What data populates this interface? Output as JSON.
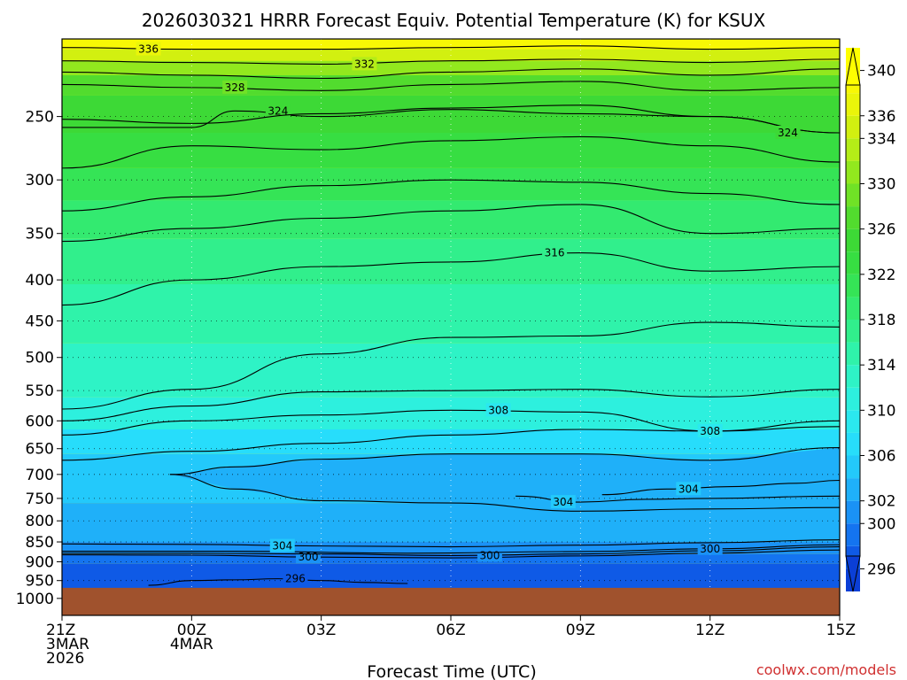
{
  "chart_data": {
    "type": "heatmap",
    "title": "2026030321 HRRR Forecast Equiv. Potential Temperature (K) for KSUX",
    "xlabel": "Forecast Time (UTC)",
    "ylabel": "",
    "credit": "coolwx.com/models",
    "x_ticks": [
      {
        "hour": 0,
        "lines": [
          "21Z",
          "3MAR",
          "2026"
        ]
      },
      {
        "hour": 3,
        "lines": [
          "00Z",
          "4MAR"
        ]
      },
      {
        "hour": 6,
        "lines": [
          "03Z"
        ]
      },
      {
        "hour": 9,
        "lines": [
          "06Z"
        ]
      },
      {
        "hour": 12,
        "lines": [
          "09Z"
        ]
      },
      {
        "hour": 15,
        "lines": [
          "12Z"
        ]
      },
      {
        "hour": 18,
        "lines": [
          "15Z"
        ]
      }
    ],
    "xlim": [
      0,
      18
    ],
    "y_ticks": [
      "250",
      "300",
      "350",
      "400",
      "450",
      "500",
      "550",
      "600",
      "650",
      "700",
      "750",
      "800",
      "850",
      "900",
      "950",
      "1000"
    ],
    "ylim": [
      1050,
      200
    ],
    "y_scale": "log",
    "surface_pressure": 970,
    "grid": true,
    "colorbar": {
      "levels": [
        294,
        296,
        298,
        300,
        302,
        304,
        306,
        308,
        310,
        312,
        314,
        316,
        318,
        320,
        322,
        324,
        326,
        328,
        330,
        332,
        334,
        336,
        338,
        340,
        342
      ],
      "labels": [
        "296",
        "300",
        "302",
        "306",
        "310",
        "314",
        "318",
        "322",
        "326",
        "330",
        "334",
        "336",
        "340"
      ],
      "label_values": [
        296,
        300,
        302,
        306,
        310,
        314,
        318,
        322,
        326,
        330,
        334,
        336,
        340
      ],
      "colors": [
        "#0b3fd6",
        "#0f5ae6",
        "#1474f0",
        "#1a92f6",
        "#1fb0f9",
        "#23c9fb",
        "#27ddfb",
        "#2be8ef",
        "#2df0de",
        "#2ef3c6",
        "#2ff3aa",
        "#31ef8c",
        "#33ea70",
        "#35e456",
        "#37de42",
        "#3dd936",
        "#52dc2e",
        "#70e226",
        "#92e81e",
        "#b4ed17",
        "#d2f010",
        "#eaf50a",
        "#f8f805",
        "#ffff00"
      ],
      "ground_color": "#a0522d"
    },
    "contours": [
      {
        "value": 296,
        "label": "296",
        "label_hour": 5.4,
        "points": [
          [
            2.0,
            963
          ],
          [
            3.0,
            950
          ],
          [
            4.0,
            948
          ],
          [
            5.0,
            945
          ],
          [
            6.0,
            950
          ],
          [
            7.0,
            955
          ],
          [
            8.0,
            958
          ]
        ]
      },
      {
        "value": 300,
        "label": "300",
        "label_hour": 5.7,
        "points": [
          [
            0,
            882
          ],
          [
            3.0,
            883
          ],
          [
            6.0,
            888
          ],
          [
            9.0,
            890
          ],
          [
            12.0,
            885
          ],
          [
            15.0,
            878
          ],
          [
            18.0,
            870
          ]
        ]
      },
      {
        "value": 300,
        "label": "300",
        "label_hour": 9.9,
        "points": [
          [
            0,
            878
          ],
          [
            3.0,
            878
          ],
          [
            6.0,
            880
          ],
          [
            9.0,
            884
          ],
          [
            12.0,
            880
          ],
          [
            15.0,
            872
          ],
          [
            18.0,
            862
          ]
        ]
      },
      {
        "value": 300,
        "label": "300",
        "label_hour": 15.0,
        "points": [
          [
            0,
            873
          ],
          [
            4.0,
            873
          ],
          [
            8.0,
            878
          ],
          [
            12.0,
            874
          ],
          [
            15.0,
            867
          ],
          [
            18.0,
            857
          ]
        ]
      },
      {
        "value": 304,
        "label": "304",
        "label_hour": 5.1,
        "points": [
          [
            0,
            855
          ],
          [
            3.0,
            856
          ],
          [
            6.0,
            860
          ],
          [
            9.0,
            862
          ],
          [
            12.0,
            858
          ],
          [
            15.0,
            852
          ],
          [
            18.0,
            845
          ]
        ]
      },
      {
        "value": 304,
        "label": "304",
        "label_hour": 14.5,
        "points": [
          [
            12.5,
            742
          ],
          [
            14.0,
            730
          ],
          [
            15.5,
            725
          ],
          [
            17.0,
            718
          ],
          [
            18.0,
            712
          ]
        ]
      },
      {
        "value": 304,
        "label": "304",
        "label_hour": 11.6,
        "points": [
          [
            10.5,
            745
          ],
          [
            12.0,
            758
          ],
          [
            13.5,
            752
          ],
          [
            15.0,
            750
          ],
          [
            18.0,
            745
          ]
        ]
      },
      {
        "value": 306,
        "label": "",
        "label_hour": 0,
        "points": [
          [
            2.5,
            700
          ],
          [
            4.0,
            685
          ],
          [
            6.0,
            670
          ],
          [
            9.0,
            660
          ],
          [
            12.0,
            660
          ],
          [
            15.0,
            672
          ],
          [
            18.0,
            648
          ]
        ]
      },
      {
        "value": 306,
        "label": "",
        "label_hour": 0,
        "points": [
          [
            2.5,
            700
          ],
          [
            4.0,
            730
          ],
          [
            6.0,
            755
          ],
          [
            9.0,
            760
          ],
          [
            12.0,
            778
          ],
          [
            15.0,
            773
          ],
          [
            18.0,
            770
          ]
        ]
      },
      {
        "value": 308,
        "label": "308",
        "label_hour": 10.1,
        "points": [
          [
            0,
            625
          ],
          [
            3.0,
            600
          ],
          [
            6.0,
            590
          ],
          [
            9.0,
            582
          ],
          [
            12.0,
            585
          ],
          [
            15.0,
            618
          ],
          [
            18.0,
            600
          ]
        ]
      },
      {
        "value": 308,
        "label": "308",
        "label_hour": 15.0,
        "points": [
          [
            0,
            672
          ],
          [
            3.0,
            655
          ],
          [
            6.0,
            640
          ],
          [
            9.0,
            625
          ],
          [
            12.0,
            615
          ],
          [
            15.0,
            618
          ],
          [
            18.0,
            610
          ]
        ]
      },
      {
        "value": 312,
        "label": "",
        "label_hour": 0,
        "points": [
          [
            0,
            580
          ],
          [
            3.0,
            548
          ],
          [
            6.0,
            495
          ],
          [
            9.0,
            472
          ],
          [
            12.0,
            470
          ],
          [
            15.0,
            452
          ],
          [
            18.0,
            458
          ]
        ]
      },
      {
        "value": 310,
        "label": "",
        "label_hour": 0,
        "points": [
          [
            0,
            600
          ],
          [
            3.0,
            575
          ],
          [
            6.0,
            552
          ],
          [
            9.0,
            550
          ],
          [
            12.0,
            548
          ],
          [
            15.0,
            560
          ],
          [
            18.0,
            548
          ]
        ]
      },
      {
        "value": 316,
        "label": "316",
        "label_hour": 11.4,
        "points": [
          [
            0,
            430
          ],
          [
            3.0,
            400
          ],
          [
            6.0,
            385
          ],
          [
            9.0,
            380
          ],
          [
            12.0,
            370
          ],
          [
            15.0,
            390
          ],
          [
            18.0,
            385
          ]
        ]
      },
      {
        "value": 318,
        "label": "",
        "label_hour": 0,
        "points": [
          [
            0,
            358
          ],
          [
            3.0,
            345
          ],
          [
            6.0,
            335
          ],
          [
            9.0,
            328
          ],
          [
            12.0,
            322
          ],
          [
            15.0,
            350
          ],
          [
            18.0,
            345
          ]
        ]
      },
      {
        "value": 320,
        "label": "",
        "label_hour": 0,
        "points": [
          [
            0,
            328
          ],
          [
            3.0,
            315
          ],
          [
            6.0,
            305
          ],
          [
            9.0,
            300
          ],
          [
            12.0,
            302
          ],
          [
            15.0,
            312
          ],
          [
            18.0,
            322
          ]
        ]
      },
      {
        "value": 322,
        "label": "",
        "label_hour": 0,
        "points": [
          [
            0,
            290
          ],
          [
            3.0,
            272
          ],
          [
            6.0,
            275
          ],
          [
            9.0,
            268
          ],
          [
            12.0,
            265
          ],
          [
            15.0,
            272
          ],
          [
            18.0,
            285
          ]
        ]
      },
      {
        "value": 324,
        "label": "324",
        "label_hour": 5.0,
        "points": [
          [
            0,
            258
          ],
          [
            3.0,
            258
          ],
          [
            4.0,
            246
          ],
          [
            6.0,
            250
          ],
          [
            9.0,
            245
          ],
          [
            12.0,
            248
          ],
          [
            15.0,
            250
          ],
          [
            18.0,
            262
          ]
        ]
      },
      {
        "value": 324,
        "label": "324",
        "label_hour": 16.8,
        "points": [
          [
            0,
            252
          ],
          [
            3.0,
            255
          ],
          [
            6.0,
            248
          ],
          [
            9.0,
            244
          ],
          [
            12.0,
            242
          ],
          [
            15.0,
            250
          ],
          [
            18.0,
            262
          ]
        ]
      },
      {
        "value": 328,
        "label": "328",
        "label_hour": 4.0,
        "points": [
          [
            0,
            228
          ],
          [
            3.0,
            230
          ],
          [
            6.0,
            232
          ],
          [
            9.0,
            228
          ],
          [
            12.0,
            226
          ],
          [
            15.0,
            232
          ],
          [
            18.0,
            230
          ]
        ]
      },
      {
        "value": 330,
        "label": "",
        "label_hour": 0,
        "points": [
          [
            0,
            220
          ],
          [
            3.0,
            222
          ],
          [
            6.0,
            224
          ],
          [
            9.0,
            220
          ],
          [
            12.0,
            218
          ],
          [
            15.0,
            222
          ],
          [
            18.0,
            218
          ]
        ]
      },
      {
        "value": 332,
        "label": "332",
        "label_hour": 7.0,
        "points": [
          [
            0,
            213
          ],
          [
            3.0,
            214
          ],
          [
            6.0,
            215
          ],
          [
            9.0,
            213
          ],
          [
            12.0,
            212
          ],
          [
            15.0,
            214
          ],
          [
            18.0,
            212
          ]
        ]
      },
      {
        "value": 336,
        "label": "336",
        "label_hour": 2.0,
        "points": [
          [
            0,
            205
          ],
          [
            3.0,
            206
          ],
          [
            6.0,
            206
          ],
          [
            9.0,
            205
          ],
          [
            12.0,
            204
          ],
          [
            15.0,
            206
          ],
          [
            18.0,
            205
          ]
        ]
      }
    ]
  }
}
